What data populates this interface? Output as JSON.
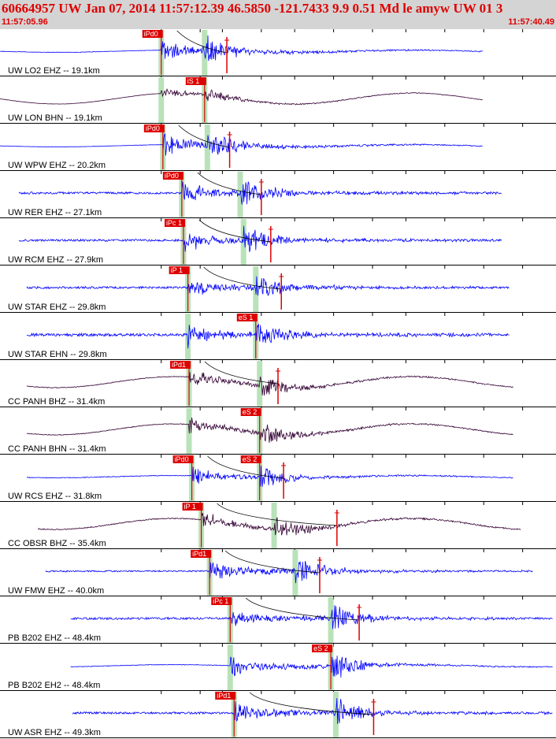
{
  "header": {
    "title": "60664957 UW Jan 07, 2014 11:57:12.39   46.5850 -121.7433  9.9 0.51 Md le amyw UW 01   3",
    "start_time": "11:57:05.96",
    "end_time": "11:57:40.49"
  },
  "colors": {
    "header_bg": "#d4d4d4",
    "header_text": "#dd0000",
    "trace_blue": "#0000ff",
    "trace_dark": "#330033",
    "pick_red": "#dd0000",
    "window_green": "#b9e2b9"
  },
  "traces": [
    {
      "label": "UW LO2 EHZ -- 19.1km",
      "color": "dark-blue",
      "start": 0.0,
      "end": 0.868,
      "p": 0.29,
      "s": 0.368,
      "amp": 1.0,
      "noise": 0.03,
      "picks": [
        {
          "label": "iPd0",
          "t": 0.29
        }
      ],
      "cut": 0.408
    },
    {
      "label": "UW LON BHN -- 19.1km",
      "color": "dark-purple",
      "start": 0.0,
      "end": 0.868,
      "p": 0.29,
      "s": 0.368,
      "amp": 0.45,
      "noise": 0.02,
      "picks": [
        {
          "label": "iS 1",
          "t": 0.368
        }
      ],
      "cut": 0.0
    },
    {
      "label": "UW WPW EHZ -- 20.2km",
      "color": "dark-blue",
      "start": 0.0,
      "end": 0.868,
      "p": 0.293,
      "s": 0.373,
      "amp": 1.0,
      "noise": 0.02,
      "picks": [
        {
          "label": "iPd0",
          "t": 0.293
        }
      ],
      "cut": 0.413
    },
    {
      "label": "UW RER EHZ -- 27.1km",
      "color": "dark-blue",
      "start": 0.034,
      "end": 0.902,
      "p": 0.327,
      "s": 0.432,
      "amp": 1.0,
      "noise": 0.15,
      "picks": [
        {
          "label": "iPd0",
          "t": 0.327
        }
      ],
      "cut": 0.47
    },
    {
      "label": "UW RCM EHZ -- 27.9km",
      "color": "dark-blue",
      "start": 0.034,
      "end": 0.902,
      "p": 0.33,
      "s": 0.438,
      "amp": 1.0,
      "noise": 0.15,
      "picks": [
        {
          "label": "iPc 1",
          "t": 0.33
        }
      ],
      "cut": 0.487
    },
    {
      "label": "UW STAR EHZ -- 29.8km",
      "color": "dark-blue",
      "start": 0.048,
      "end": 0.916,
      "p": 0.338,
      "s": 0.46,
      "amp": 0.9,
      "noise": 0.15,
      "picks": [
        {
          "label": "iP 1",
          "t": 0.338
        }
      ],
      "cut": 0.506
    },
    {
      "label": "UW STAR EHN -- 29.8km",
      "color": "dark-blue",
      "start": 0.048,
      "end": 0.916,
      "p": 0.338,
      "s": 0.46,
      "amp": 0.9,
      "noise": 0.2,
      "picks": [
        {
          "label": "eS 1",
          "t": 0.46
        }
      ],
      "cut": 0.0
    },
    {
      "label": "CC PANH BHZ -- 31.4km",
      "color": "dark-purple",
      "start": 0.048,
      "end": 0.923,
      "p": 0.34,
      "s": 0.467,
      "amp": 0.8,
      "noise": 0.05,
      "picks": [
        {
          "label": "iPd1",
          "t": 0.34
        }
      ],
      "cut": 0.5
    },
    {
      "label": "CC PANH BHN -- 31.4km",
      "color": "dark-purple",
      "start": 0.048,
      "end": 0.923,
      "p": 0.34,
      "s": 0.467,
      "amp": 0.8,
      "noise": 0.05,
      "picks": [
        {
          "label": "eS 2",
          "t": 0.467
        }
      ],
      "cut": 0.0
    },
    {
      "label": "UW RCS EHZ -- 31.8km",
      "color": "dark-blue",
      "start": 0.048,
      "end": 0.923,
      "p": 0.345,
      "s": 0.467,
      "amp": 0.8,
      "noise": 0.05,
      "picks": [
        {
          "label": "iPd0",
          "t": 0.345
        },
        {
          "label": "eS 2",
          "t": 0.467
        }
      ],
      "cut": 0.51
    },
    {
      "label": "CC OBSR BHZ -- 35.4km",
      "color": "dark-purple",
      "start": 0.068,
      "end": 0.936,
      "p": 0.362,
      "s": 0.493,
      "amp": 0.9,
      "noise": 0.07,
      "picks": [
        {
          "label": "iP 1",
          "t": 0.362
        }
      ],
      "cut": 0.606
    },
    {
      "label": "UW FMW EHZ -- 40.0km",
      "color": "dark-blue",
      "start": 0.082,
      "end": 0.959,
      "p": 0.377,
      "s": 0.531,
      "amp": 1.0,
      "noise": 0.1,
      "picks": [
        {
          "label": "iPd1",
          "t": 0.377
        }
      ],
      "cut": 0.575
    },
    {
      "label": "PB B202 EHZ -- 48.4km",
      "color": "dark-blue",
      "start": 0.127,
      "end": 0.994,
      "p": 0.414,
      "s": 0.595,
      "amp": 1.0,
      "noise": 0.15,
      "picks": [
        {
          "label": "iPc 1",
          "t": 0.414
        }
      ],
      "cut": 0.646
    },
    {
      "label": "PB B202 EH2 -- 48.4km",
      "color": "dark-blue",
      "start": 0.127,
      "end": 0.994,
      "p": 0.414,
      "s": 0.595,
      "amp": 1.0,
      "noise": 0.04,
      "picks": [
        {
          "label": "eS 2",
          "t": 0.595
        }
      ],
      "cut": 0.0
    },
    {
      "label": "UW ASR EHZ -- 49.3km",
      "color": "dark-blue",
      "start": 0.13,
      "end": 0.994,
      "p": 0.421,
      "s": 0.604,
      "amp": 1.0,
      "noise": 0.15,
      "picks": [
        {
          "label": "iPd1",
          "t": 0.421
        }
      ],
      "cut": 0.672
    }
  ]
}
